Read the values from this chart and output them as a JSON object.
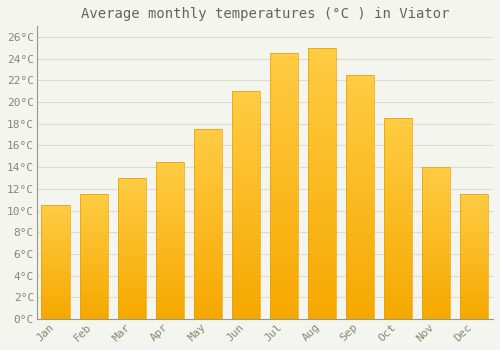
{
  "title": "Average monthly temperatures (°C ) in Viator",
  "months": [
    "Jan",
    "Feb",
    "Mar",
    "Apr",
    "May",
    "Jun",
    "Jul",
    "Aug",
    "Sep",
    "Oct",
    "Nov",
    "Dec"
  ],
  "values": [
    10.5,
    11.5,
    13.0,
    14.5,
    17.5,
    21.0,
    24.5,
    25.0,
    22.5,
    18.5,
    14.0,
    11.5
  ],
  "bar_color_top": "#FFC033",
  "bar_color_bottom": "#F5A800",
  "bar_edge_color": "#E8A000",
  "background_color": "#F5F5F0",
  "plot_bg_color": "#F5F5F0",
  "grid_color": "#DDDDCC",
  "ylim": [
    0,
    27
  ],
  "yticks": [
    0,
    2,
    4,
    6,
    8,
    10,
    12,
    14,
    16,
    18,
    20,
    22,
    24,
    26
  ],
  "title_fontsize": 10,
  "tick_fontsize": 8,
  "tick_font_color": "#888877",
  "title_font_color": "#666655",
  "bar_width": 0.75
}
